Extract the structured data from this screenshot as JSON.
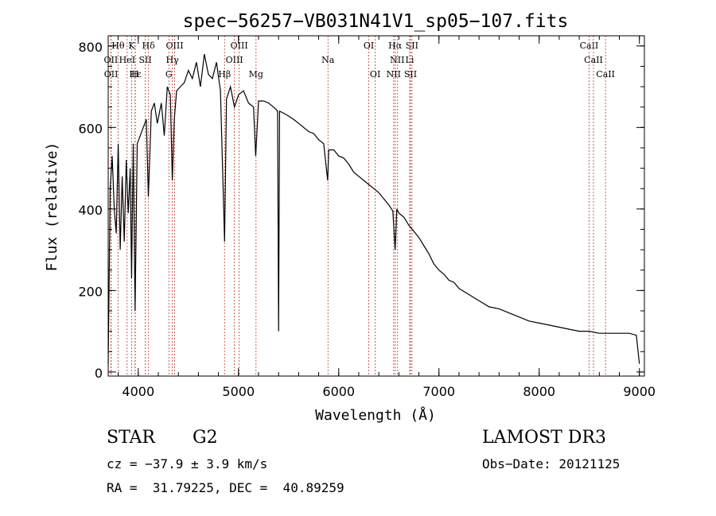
{
  "chart_data": {
    "type": "line",
    "title": "spec−56257−VB031N41V1_sp05−107.fits",
    "xlabel": "Wavelength (Å)",
    "ylabel": "Flux (relative)",
    "xlim": [
      3700,
      9050
    ],
    "ylim": [
      -10,
      825
    ],
    "xticks": [
      4000,
      5000,
      6000,
      7000,
      8000,
      9000
    ],
    "xtick_labels": [
      "4000",
      "5000",
      "6000",
      "7000",
      "8000",
      "9000"
    ],
    "yticks": [
      0,
      200,
      400,
      600,
      800
    ],
    "ytick_labels": [
      "0",
      "200",
      "400",
      "600",
      "800"
    ],
    "series": [
      {
        "name": "flux",
        "x": [
          3700,
          3720,
          3740,
          3760,
          3780,
          3800,
          3820,
          3840,
          3860,
          3880,
          3900,
          3920,
          3933,
          3950,
          3968,
          3990,
          4020,
          4050,
          4080,
          4101,
          4130,
          4160,
          4190,
          4230,
          4260,
          4290,
          4320,
          4340,
          4360,
          4383,
          4420,
          4460,
          4500,
          4540,
          4580,
          4620,
          4660,
          4700,
          4740,
          4780,
          4820,
          4861,
          4880,
          4920,
          4960,
          5000,
          5050,
          5100,
          5150,
          5172,
          5200,
          5250,
          5300,
          5350,
          5390,
          5400,
          5410,
          5450,
          5500,
          5550,
          5600,
          5650,
          5700,
          5750,
          5800,
          5850,
          5890,
          5900,
          5950,
          6000,
          6050,
          6100,
          6150,
          6200,
          6250,
          6300,
          6350,
          6400,
          6450,
          6500,
          6540,
          6563,
          6580,
          6600,
          6650,
          6700,
          6750,
          6800,
          6850,
          6900,
          6950,
          7000,
          7050,
          7100,
          7150,
          7200,
          7300,
          7400,
          7500,
          7600,
          7700,
          7800,
          7900,
          8000,
          8100,
          8200,
          8300,
          8400,
          8500,
          8600,
          8700,
          8800,
          8900,
          8970,
          9000
        ],
        "y": [
          20,
          450,
          530,
          400,
          340,
          560,
          300,
          480,
          320,
          520,
          390,
          500,
          230,
          560,
          150,
          560,
          580,
          600,
          620,
          430,
          640,
          660,
          610,
          660,
          580,
          700,
          680,
          470,
          620,
          690,
          700,
          710,
          740,
          720,
          760,
          700,
          780,
          730,
          720,
          760,
          690,
          320,
          670,
          700,
          650,
          680,
          690,
          660,
          650,
          530,
          665,
          665,
          660,
          650,
          640,
          100,
          640,
          635,
          628,
          620,
          610,
          600,
          590,
          585,
          570,
          560,
          470,
          545,
          545,
          530,
          525,
          510,
          490,
          480,
          470,
          460,
          450,
          440,
          425,
          410,
          395,
          300,
          400,
          390,
          380,
          360,
          345,
          330,
          310,
          290,
          265,
          250,
          240,
          225,
          220,
          205,
          190,
          175,
          160,
          155,
          145,
          135,
          125,
          120,
          115,
          110,
          105,
          100,
          100,
          95,
          95,
          95,
          95,
          90,
          20
        ]
      }
    ],
    "lines": [
      {
        "label": "Hθ",
        "x": 3798,
        "row": 1
      },
      {
        "label": "K",
        "x": 3934,
        "row": 1
      },
      {
        "label": "Hδ",
        "x": 4102,
        "row": 1
      },
      {
        "label": "OIII",
        "x": 4363,
        "row": 1
      },
      {
        "label": "OIII",
        "x": 5007,
        "row": 1
      },
      {
        "label": "OI",
        "x": 6300,
        "row": 1
      },
      {
        "label": "Hα",
        "x": 6563,
        "row": 1
      },
      {
        "label": "SII",
        "x": 6731,
        "row": 1
      },
      {
        "label": "CaII",
        "x": 8498,
        "row": 1
      },
      {
        "label": "OII",
        "x": 3727,
        "row": 2
      },
      {
        "label": "HeI",
        "x": 3889,
        "row": 2
      },
      {
        "label": "SII",
        "x": 4070,
        "row": 2
      },
      {
        "label": "Hγ",
        "x": 4340,
        "row": 2
      },
      {
        "label": "OIII",
        "x": 4959,
        "row": 2
      },
      {
        "label": "Na",
        "x": 5893,
        "row": 2
      },
      {
        "label": "NII",
        "x": 6584,
        "row": 2
      },
      {
        "label": "Li",
        "x": 6708,
        "row": 2
      },
      {
        "label": "CaII",
        "x": 8542,
        "row": 2
      },
      {
        "label": "OII",
        "x": 3729,
        "row": 3
      },
      {
        "label": "Hε",
        "x": 3970,
        "row": 3
      },
      {
        "label": "H",
        "x": 3968,
        "row": 3
      },
      {
        "label": "G",
        "x": 4305,
        "row": 3
      },
      {
        "label": "Hβ",
        "x": 4861,
        "row": 3
      },
      {
        "label": "Mg",
        "x": 5175,
        "row": 3
      },
      {
        "label": "OI",
        "x": 6364,
        "row": 3
      },
      {
        "label": "NII",
        "x": 6548,
        "row": 3
      },
      {
        "label": "SII",
        "x": 6716,
        "row": 3
      },
      {
        "label": "CaII",
        "x": 8662,
        "row": 3
      }
    ]
  },
  "info": {
    "object_class": "STAR",
    "subclass": "G2",
    "survey": "LAMOST DR3",
    "cz": "cz = −37.9 ± 3.9 km/s",
    "obs_date": "Obs−Date: 20121125",
    "coords": "RA =  31.79225, DEC =  40.89259"
  }
}
